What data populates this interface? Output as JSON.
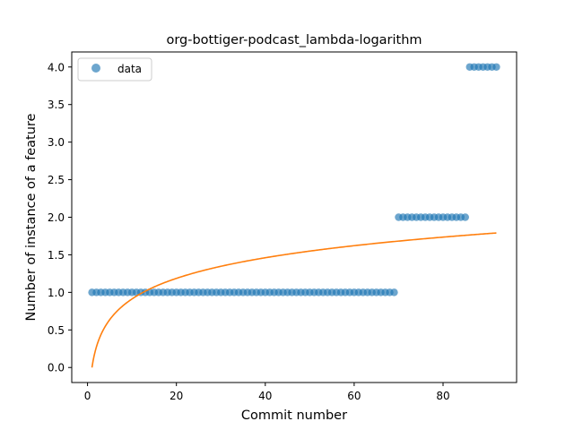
{
  "chart_data": {
    "type": "scatter",
    "title": "org-bottiger-podcast_lambda-logarithm",
    "xlabel": "Commit number",
    "ylabel": "Number of instance of a feature",
    "xlim": [
      -3.55,
      96.55
    ],
    "ylim": [
      -0.2,
      4.2
    ],
    "xticks": [
      0,
      20,
      40,
      60,
      80
    ],
    "yticks": [
      0.0,
      0.5,
      1.0,
      1.5,
      2.0,
      2.5,
      3.0,
      3.5,
      4.0
    ],
    "xtick_labels": [
      "0",
      "20",
      "40",
      "60",
      "80"
    ],
    "ytick_labels": [
      "0.0",
      "0.5",
      "1.0",
      "1.5",
      "2.0",
      "2.5",
      "3.0",
      "3.5",
      "4.0"
    ],
    "grid": false,
    "legend_position": "upper-left",
    "series": [
      {
        "name": "data",
        "kind": "scatter",
        "color": "#1f77b4",
        "opacity": 0.65,
        "segments": [
          {
            "x_from": 1,
            "x_to": 69,
            "y": 1.0
          },
          {
            "x_from": 70,
            "x_to": 85,
            "y": 2.0
          },
          {
            "x_from": 86,
            "x_to": 92,
            "y": 4.0
          }
        ]
      },
      {
        "kind": "line",
        "color": "#ff7f0e",
        "model": "logarithm",
        "x_range": [
          1,
          92
        ],
        "a": 0.396,
        "b": 0.0
      }
    ]
  }
}
